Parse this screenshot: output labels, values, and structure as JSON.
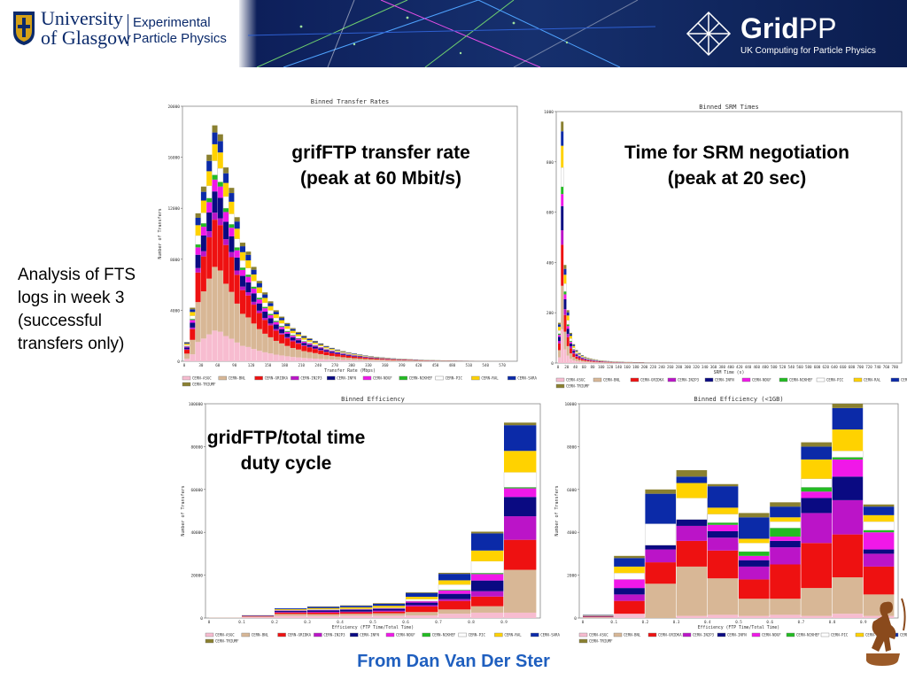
{
  "header": {
    "university_line1": "University",
    "university_line2": "of Glasgow",
    "department_line1": "Experimental",
    "department_line2": "Particle Physics",
    "gridpp_name": "Grid",
    "gridpp_suffix": "PP",
    "gridpp_tagline": "UK Computing for Particle Physics"
  },
  "side_note": "Analysis of FTS logs in week 3 (successful transfers only)",
  "footer": {
    "credit": "From Dan Van Der Ster"
  },
  "colors": {
    "CERN-ASGC": "#f7bcd0",
    "CERN-BNL": "#d8b796",
    "CERN-GRIDKA": "#ee1111",
    "CERN-IN2P3": "#bb14c8",
    "CERN-INFN": "#0a0a82",
    "CERN-NDGF": "#f018e8",
    "CERN-NIKHEF": "#22bb22",
    "CERN-PIC": "#ffffff",
    "CERN-RAL": "#ffd200",
    "CERN-SARA": "#0b2aa8",
    "CERN-TRIUMF": "#8a8030"
  },
  "chart_data": [
    {
      "type": "bar",
      "stacked": true,
      "title": "Binned Transfer Rates",
      "callout": [
        "grifFTP transfer rate",
        "(peak at 60 Mbit/s)"
      ],
      "xlabel": "Transfer Rate (Mbps)",
      "ylabel": "Number of Transfers",
      "ylim": [
        0,
        20000
      ],
      "yticks": [
        "0",
        "4000",
        "8000",
        "12000",
        "16000",
        "20000"
      ],
      "xticks": [
        "0",
        "30",
        "60",
        "90",
        "120",
        "150",
        "180",
        "210",
        "240",
        "270",
        "300",
        "330",
        "360",
        "390",
        "420",
        "450",
        "480",
        "510",
        "540",
        "570",
        "600"
      ],
      "series_names": [
        "CERN-ASGC",
        "CERN-BNL",
        "CERN-GRIDKA",
        "CERN-IN2P3",
        "CERN-INFN",
        "CERN-NDGF",
        "CERN-NIKHEF",
        "CERN-PIC",
        "CERN-RAL",
        "CERN-SARA",
        "CERN-TRIUMF"
      ],
      "bin_width": 10,
      "totals": [
        1500,
        4200,
        11600,
        13700,
        16200,
        18500,
        17800,
        15200,
        13600,
        11300,
        9300,
        8600,
        7400,
        6300,
        5400,
        4700,
        4000,
        3500,
        3000,
        2600,
        2300,
        2000,
        1800,
        1600,
        1400,
        1200,
        1050,
        920,
        800,
        700,
        610,
        530,
        460,
        400,
        350,
        310,
        270,
        235,
        205,
        180,
        160,
        140,
        120,
        105,
        92,
        80,
        70,
        60,
        52,
        45,
        40,
        35,
        30,
        26,
        22,
        19,
        16,
        14,
        12,
        10
      ],
      "fractions": [
        0.13,
        0.27,
        0.2,
        0.03,
        0.09,
        0.05,
        0.02,
        0.06,
        0.07,
        0.05,
        0.03
      ]
    },
    {
      "type": "bar",
      "stacked": true,
      "title": "Binned SRM Times",
      "callout": [
        "Time for SRM negotiation",
        "(peak at 20 sec)"
      ],
      "xlabel": "SRM Time (s)",
      "ylabel": "",
      "ylim": [
        0,
        1000
      ],
      "yticks": [
        "0",
        "200",
        "400",
        "600",
        "800",
        "1000"
      ],
      "xticks": [
        "0",
        "20",
        "40",
        "60",
        "80",
        "100",
        "120",
        "140",
        "160",
        "180",
        "200",
        "220",
        "240",
        "260",
        "280",
        "300",
        "320",
        "340",
        "360",
        "380",
        "400",
        "420",
        "440",
        "460",
        "480",
        "500",
        "520",
        "540",
        "560",
        "580",
        "600",
        "620",
        "640",
        "660",
        "680",
        "700",
        "720",
        "740",
        "760",
        "780",
        "800"
      ],
      "series_names": [
        "CERN-ASGC",
        "CERN-BNL",
        "CERN-GRIDKA",
        "CERN-IN2P3",
        "CERN-INFN",
        "CERN-NDGF",
        "CERN-NIKHEF",
        "CERN-PIC",
        "CERN-RAL",
        "CERN-SARA",
        "CERN-TRIUMF"
      ],
      "bin_width": 10,
      "totals": [
        160,
        960,
        390,
        210,
        120,
        75,
        52,
        40,
        31,
        25,
        21,
        18,
        15,
        13,
        11,
        10,
        9,
        8,
        7,
        6,
        6,
        5,
        5,
        4,
        4,
        4,
        3,
        3,
        3,
        3,
        2,
        2,
        2,
        2,
        2,
        2,
        2,
        2,
        2,
        2,
        1,
        1,
        1,
        1,
        1,
        1,
        1,
        1,
        1,
        1,
        1,
        1,
        1,
        1,
        1,
        1,
        1,
        1,
        1,
        1,
        1,
        1,
        1,
        1,
        1,
        1,
        1,
        1,
        1,
        1,
        1,
        1,
        1,
        1,
        1,
        1,
        1,
        1,
        1,
        1
      ],
      "fractions": [
        0.14,
        0.18,
        0.17,
        0.06,
        0.1,
        0.05,
        0.03,
        0.08,
        0.09,
        0.06,
        0.04
      ]
    },
    {
      "type": "bar",
      "stacked": true,
      "title": "Binned Efficiency",
      "callout": [
        "gridFTP/total time",
        "duty cycle"
      ],
      "xlabel": "Efficiency (FTP Time/Total Time)",
      "ylabel": "Number of Transfers",
      "ylim": [
        0,
        100000
      ],
      "yticks": [
        "0",
        "20000",
        "40000",
        "60000",
        "80000",
        "100000"
      ],
      "categories": [
        "0",
        "0.1",
        "0.2",
        "0.3",
        "0.4",
        "0.5",
        "0.6",
        "0.7",
        "0.8",
        "0.9"
      ],
      "series_names": [
        "CERN-ASGC",
        "CERN-BNL",
        "CERN-GRIDKA",
        "CERN-IN2P3",
        "CERN-INFN",
        "CERN-NDGF",
        "CERN-NIKHEF",
        "CERN-PIC",
        "CERN-RAL",
        "CERN-SARA",
        "CERN-TRIUMF"
      ],
      "stacks": [
        [
          100,
          100,
          0,
          0,
          0,
          0,
          0,
          0,
          0,
          0,
          0
        ],
        [
          400,
          300,
          200,
          100,
          200,
          0,
          0,
          0,
          0,
          0,
          100
        ],
        [
          1000,
          900,
          600,
          300,
          500,
          200,
          0,
          200,
          400,
          400,
          0
        ],
        [
          900,
          900,
          700,
          400,
          700,
          200,
          0,
          300,
          500,
          600,
          200
        ],
        [
          1100,
          900,
          700,
          300,
          900,
          200,
          0,
          200,
          700,
          700,
          200
        ],
        [
          1100,
          1100,
          800,
          500,
          800,
          200,
          100,
          200,
          900,
          900,
          300
        ],
        [
          1200,
          1600,
          2600,
          600,
          1200,
          600,
          100,
          900,
          1100,
          1800,
          300
        ],
        [
          2000,
          2000,
          4000,
          800,
          2500,
          1500,
          300,
          2500,
          2000,
          3000,
          500
        ],
        [
          2500,
          3000,
          4500,
          2500,
          5000,
          3000,
          500,
          5500,
          5000,
          8000,
          800
        ],
        [
          2500,
          20000,
          14000,
          11000,
          9000,
          4000,
          500,
          7000,
          10000,
          12000,
          1200
        ]
      ]
    },
    {
      "type": "bar",
      "stacked": true,
      "title": "Binned Efficiency (<1GB)",
      "callout": [],
      "xlabel": "Efficiency (FTP Time/Total Time)",
      "ylabel": "Number of Transfers",
      "ylim": [
        0,
        10000
      ],
      "yticks": [
        "0",
        "2000",
        "4000",
        "6000",
        "8000",
        "10000"
      ],
      "categories": [
        "0",
        "0.1",
        "0.2",
        "0.3",
        "0.4",
        "0.5",
        "0.6",
        "0.7",
        "0.8",
        "0.9"
      ],
      "series_names": [
        "CERN-ASGC",
        "CERN-BNL",
        "CERN-GRIDKA",
        "CERN-IN2P3",
        "CERN-INFN",
        "CERN-NDGF",
        "CERN-NIKHEF",
        "CERN-PIC",
        "CERN-RAL",
        "CERN-SARA",
        "CERN-TRIUMF"
      ],
      "stacks": [
        [
          20,
          20,
          20,
          10,
          20,
          10,
          0,
          10,
          10,
          20,
          10
        ],
        [
          200,
          0,
          600,
          300,
          300,
          400,
          0,
          300,
          300,
          400,
          100
        ],
        [
          0,
          1600,
          1000,
          600,
          200,
          0,
          0,
          1000,
          0,
          1400,
          200
        ],
        [
          100,
          2300,
          1200,
          700,
          300,
          0,
          0,
          1000,
          700,
          300,
          300
        ],
        [
          150,
          1700,
          1300,
          600,
          300,
          300,
          100,
          400,
          300,
          1000,
          100
        ],
        [
          100,
          800,
          900,
          600,
          300,
          200,
          200,
          400,
          200,
          1000,
          200
        ],
        [
          150,
          750,
          1600,
          800,
          300,
          200,
          400,
          300,
          200,
          500,
          200
        ],
        [
          100,
          1300,
          2100,
          1400,
          700,
          300,
          200,
          400,
          900,
          600,
          200
        ],
        [
          200,
          1700,
          2000,
          1600,
          1100,
          800,
          100,
          300,
          1000,
          1000,
          200
        ],
        [
          100,
          1000,
          1300,
          600,
          200,
          800,
          100,
          400,
          300,
          400,
          100
        ]
      ]
    }
  ]
}
